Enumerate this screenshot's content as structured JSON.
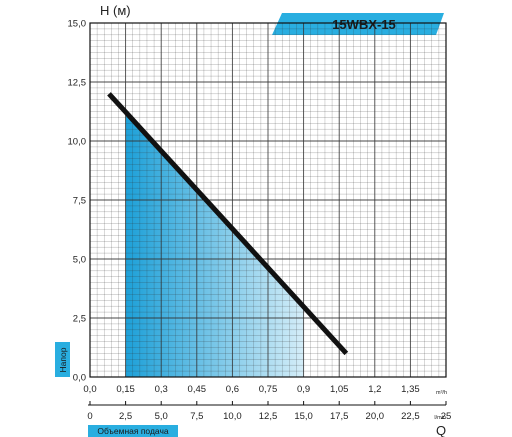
{
  "chart_data": {
    "type": "line",
    "title": "15WBX-15",
    "ylabel": "H (м)",
    "ylabel_tag": "Напор",
    "xlabel": "Q",
    "xlabel_tag": "Объемная подача",
    "ylim": [
      0,
      15
    ],
    "xlim": [
      0,
      1.5
    ],
    "y_ticks": [
      "0,0",
      "2,5",
      "5,0",
      "7,5",
      "10,0",
      "12,5",
      "15,0"
    ],
    "x_ticks_m3h": [
      "0,0",
      "0,15",
      "0,3",
      "0,45",
      "0,6",
      "0,75",
      "0,9",
      "1,05",
      "1,2",
      "1,35"
    ],
    "x_unit_m3h": "m³/h",
    "x_ticks_lmin": [
      "0",
      "2,5",
      "5,0",
      "7,5",
      "10,0",
      "12,5",
      "15,0",
      "17,5",
      "20,0",
      "22,5",
      "25"
    ],
    "x_unit_lmin": "l/min",
    "grid": true,
    "operating_range": {
      "x_min": 0.15,
      "x_max": 0.9
    },
    "series": [
      {
        "x": [
          0.08,
          1.08
        ],
        "y": [
          12.0,
          1.0
        ],
        "color": "#111111"
      }
    ],
    "colors": {
      "fill_dark": "#1da0d8",
      "fill_light": "#d4edf8",
      "banner": "#29aee0",
      "grid": "#333333"
    }
  }
}
